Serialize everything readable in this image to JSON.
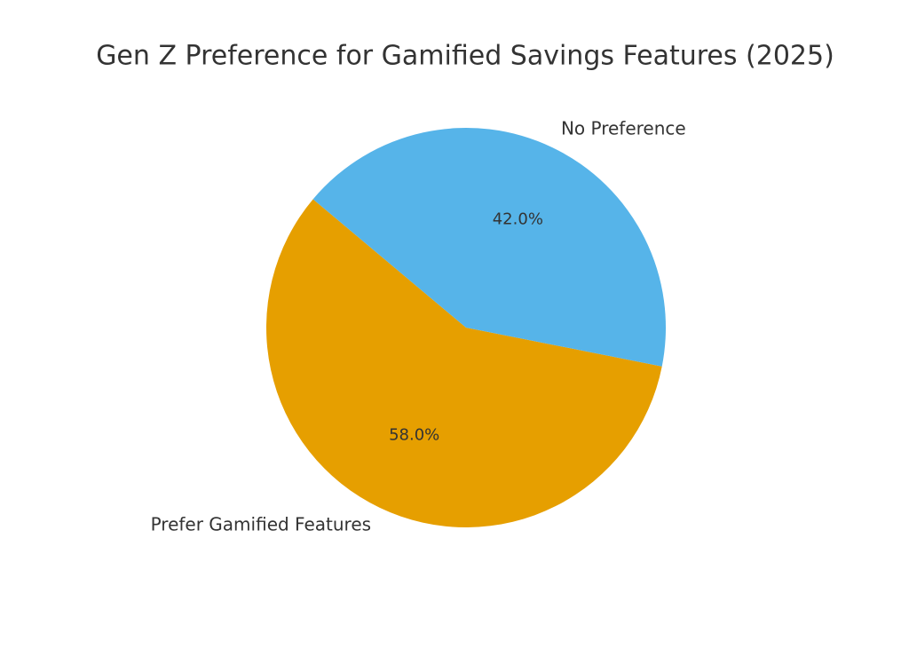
{
  "chart_data": {
    "type": "pie",
    "title": "Gen Z Preference for Gamified Savings Features (2025)",
    "categories": [
      "Prefer Gamified Features",
      "No Preference"
    ],
    "values": [
      58,
      42
    ],
    "value_labels": [
      "58.0%",
      "42.0%"
    ],
    "colors": [
      "#E69F00",
      "#56B4E9"
    ]
  }
}
